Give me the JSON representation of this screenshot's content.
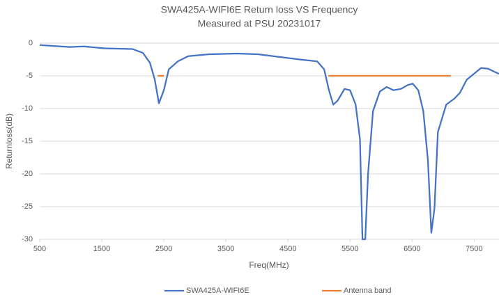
{
  "chart_data": {
    "type": "line",
    "title": "SWA425A-WIFI6E Return loss VS Frequency",
    "subtitle": "Measured at PSU 20231017",
    "x_label": "Freq(MHz)",
    "y_label": "Returnloss(dB)",
    "xlim": [
      500,
      7900
    ],
    "xticks": [
      500,
      1500,
      2500,
      3500,
      4500,
      5500,
      6500,
      7500
    ],
    "ylim": [
      -30,
      0
    ],
    "yticks": [
      0,
      -5,
      -10,
      -15,
      -20,
      -25,
      -30
    ],
    "grid": true,
    "legend": "bottom",
    "series": [
      {
        "name": "SWA425A-WIFI6E",
        "color": "#4472c4",
        "x": [
          500,
          983,
          1208,
          1545,
          1994,
          2163,
          2275,
          2354,
          2420,
          2500,
          2580,
          2725,
          2893,
          3230,
          3680,
          4017,
          4354,
          4690,
          4970,
          5083,
          5160,
          5230,
          5300,
          5410,
          5500,
          5590,
          5660,
          5700,
          5745,
          5790,
          5870,
          5980,
          6090,
          6200,
          6320,
          6430,
          6510,
          6600,
          6680,
          6755,
          6810,
          6860,
          6915,
          7050,
          7180,
          7270,
          7380,
          7610,
          7720,
          7900
        ],
        "values": [
          -0.3,
          -0.6,
          -0.5,
          -0.8,
          -0.9,
          -1.5,
          -3,
          -5.6,
          -9.2,
          -7.2,
          -4,
          -2.8,
          -2,
          -1.7,
          -1.6,
          -1.7,
          -2.1,
          -2.5,
          -2.8,
          -4,
          -7.2,
          -9.4,
          -8.8,
          -7,
          -7.2,
          -9.4,
          -14.7,
          -30,
          -30,
          -20,
          -10.4,
          -7.4,
          -6.7,
          -7.2,
          -7,
          -6.4,
          -6.2,
          -7.2,
          -10.4,
          -17.9,
          -29,
          -25.3,
          -13.6,
          -9.4,
          -8.5,
          -7.6,
          -5.6,
          -3.8,
          -3.9,
          -4.7
        ]
      },
      {
        "name": "Antenna band",
        "color": "#ed7d31",
        "x": [
          2400,
          2500,
          null,
          5150,
          7125
        ],
        "values": [
          -5,
          -5,
          null,
          -5,
          -5
        ]
      }
    ]
  }
}
